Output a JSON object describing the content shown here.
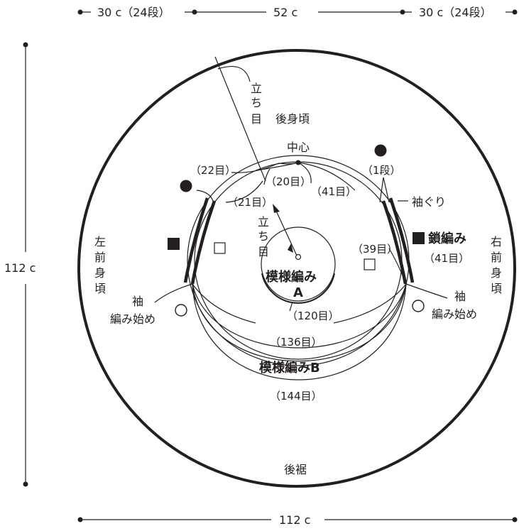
{
  "dimensions": {
    "top_left": "30 c（24段）",
    "top_center": "52 c",
    "top_right": "30 c（24段）",
    "left": "112 c",
    "bottom": "112 c"
  },
  "sections": {
    "back_body": "後身頃",
    "back_hem": "後裾",
    "left_front_chars": [
      "左",
      "前",
      "身",
      "頃"
    ],
    "right_front_chars": [
      "右",
      "前",
      "身",
      "頃"
    ],
    "center": "中心"
  },
  "stitch_counts": {
    "s22": "（22目）",
    "s20": "（20目）",
    "s41a": "（41目）",
    "s1dan": "（1段）",
    "s21": "（21目）",
    "s39": "（39目）",
    "s41b": "（41目）",
    "s120": "（120目）",
    "s136": "（136目）",
    "s144": "（144目）"
  },
  "labels": {
    "tachime_chars": [
      "立",
      "ち",
      "目"
    ],
    "armhole": "袖ぐり",
    "chain_stitch": "鎖編み",
    "pattern_a_line1": "模様編み",
    "pattern_a_line2": "A",
    "pattern_b": "模様編みB",
    "sleeve": "袖",
    "sleeve_start": "編み始め"
  },
  "legend_symbols": {
    "filled_circle": "●",
    "filled_square": "■",
    "open_square": "□",
    "open_circle": "○"
  }
}
